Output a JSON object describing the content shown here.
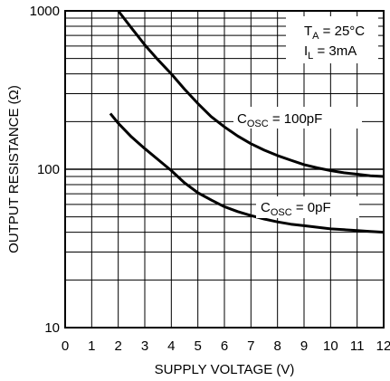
{
  "chart_data": {
    "type": "line",
    "title": "",
    "xlabel": "SUPPLY VOLTAGE (V)",
    "ylabel": "OUTPUT RESISTANCE (Ω)",
    "xlim": [
      0,
      12
    ],
    "ylim": [
      10,
      1000
    ],
    "yscale": "log",
    "x_ticks": [
      "0",
      "1",
      "2",
      "3",
      "4",
      "5",
      "6",
      "7",
      "8",
      "9",
      "10",
      "11",
      "12"
    ],
    "y_ticks": [
      "10",
      "100",
      "1000"
    ],
    "grid": true,
    "conditions": {
      "ta_main": "T",
      "ta_sub": "A",
      "ta_rest": " = 25°C",
      "il_main": "I",
      "il_sub": "L",
      "il_rest": " = 3mA"
    },
    "series": [
      {
        "label_main": "C",
        "label_sub": "OSC",
        "label_rest": " = 100pF",
        "x": [
          2,
          2.5,
          3,
          3.5,
          4,
          4.5,
          5,
          5.5,
          6,
          6.5,
          7,
          7.5,
          8,
          8.5,
          9,
          9.5,
          10,
          10.5,
          11,
          11.5,
          12
        ],
        "y": [
          1000,
          780,
          610,
          490,
          400,
          320,
          260,
          215,
          185,
          162,
          145,
          132,
          122,
          114,
          107,
          102,
          98,
          95,
          93,
          91,
          90
        ]
      },
      {
        "label_main": "C",
        "label_sub": "OSC",
        "label_rest": " = 0pF",
        "x": [
          1.7,
          2,
          2.5,
          3,
          3.5,
          4,
          4.5,
          5,
          5.5,
          6,
          6.5,
          7,
          7.5,
          8,
          8.5,
          9,
          9.5,
          10,
          10.5,
          11,
          11.5,
          12
        ],
        "y": [
          225,
          195,
          160,
          135,
          115,
          98,
          82,
          71,
          64,
          58,
          54,
          51,
          48.5,
          46.5,
          45,
          44,
          43,
          42,
          41.5,
          41,
          40.5,
          40
        ]
      }
    ]
  }
}
